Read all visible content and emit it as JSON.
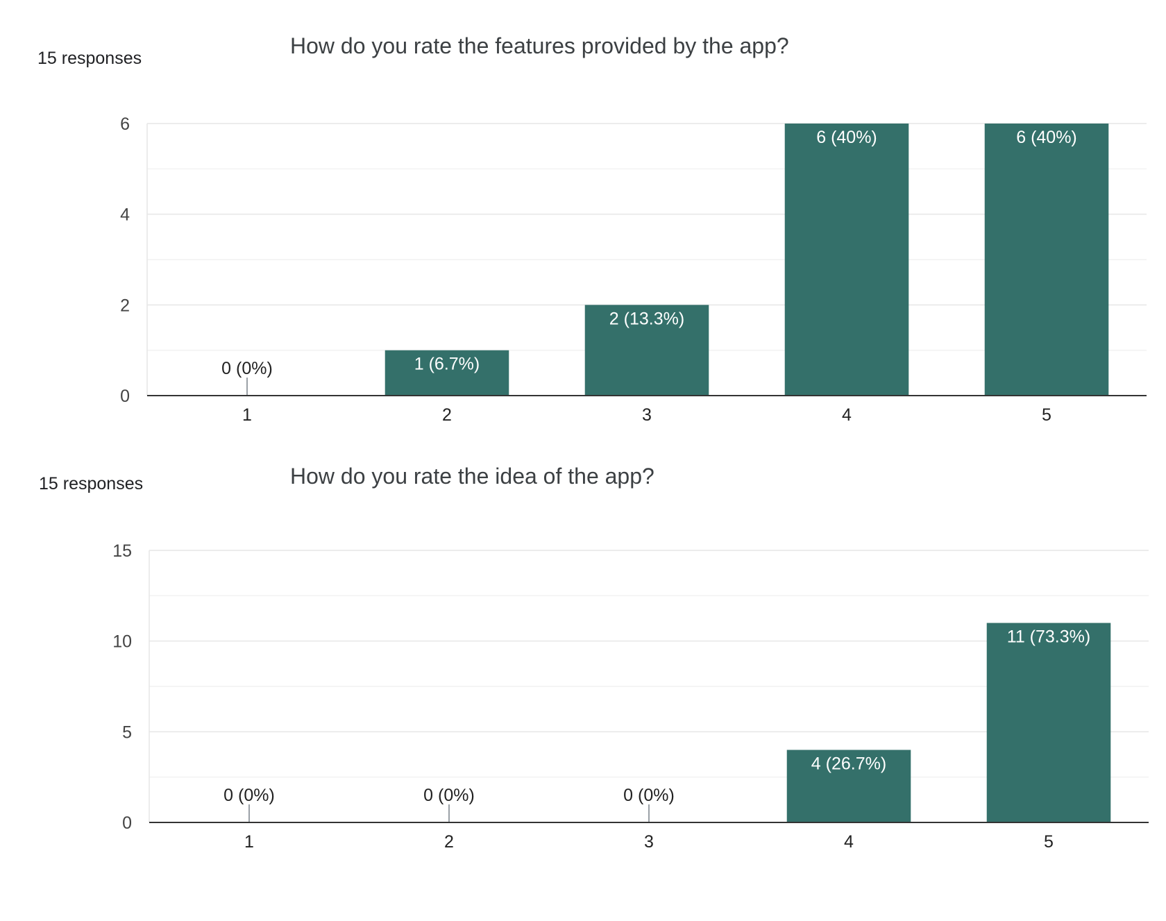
{
  "colors": {
    "bar": "#34706a",
    "grid_major": "#e6e6e6",
    "grid_minor": "#f2f2f2",
    "axis": "#333333",
    "label_inside": "#ffffff",
    "label_outside": "#222222",
    "stub": "#9aa0a6"
  },
  "charts": [
    {
      "responses_label": "15 responses",
      "question": "How do you rate the features provided by the app?"
    },
    {
      "responses_label": "15 responses",
      "question": "How do you rate the idea of the app?"
    }
  ],
  "chart_data": [
    {
      "type": "bar",
      "title": "How do you rate the features provided by the app?",
      "categories": [
        "1",
        "2",
        "3",
        "4",
        "5"
      ],
      "values": [
        0,
        1,
        2,
        6,
        6
      ],
      "data_labels": [
        "0 (0%)",
        "1 (6.7%)",
        "2 (13.3%)",
        "6 (40%)",
        "6 (40%)"
      ],
      "yticks": [
        0,
        2,
        4,
        6
      ],
      "ylim": [
        0,
        6
      ],
      "minor_gridlines": true,
      "xlabel": "",
      "ylabel": ""
    },
    {
      "type": "bar",
      "title": "How do you rate the idea of the app?",
      "categories": [
        "1",
        "2",
        "3",
        "4",
        "5"
      ],
      "values": [
        0,
        0,
        0,
        4,
        11
      ],
      "data_labels": [
        "0 (0%)",
        "0 (0%)",
        "0 (0%)",
        "4 (26.7%)",
        "11 (73.3%)"
      ],
      "yticks": [
        0,
        5,
        10,
        15
      ],
      "ylim": [
        0,
        15
      ],
      "minor_gridlines": true,
      "xlabel": "",
      "ylabel": ""
    }
  ]
}
